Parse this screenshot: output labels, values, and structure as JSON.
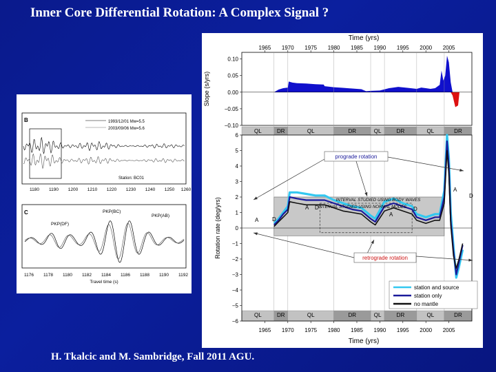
{
  "slide": {
    "title": "Inner Core Differential Rotation: A Complex Signal ?",
    "credit": "H. Tkalcic and M. Sambridge, Fall 2011 AGU."
  },
  "colors": {
    "background": "#0a1a8c",
    "slope_positive": "#1010cc",
    "slope_negative": "#dd1111",
    "station_and_source": "#33c8f0",
    "station_only": "#1a1a9a",
    "no_mantle": "#111111",
    "band": "#c8c8c8"
  },
  "left_panel": {
    "b": {
      "label": "B",
      "legend": [
        "1993/12/01 Mw=5.5",
        "2003/09/06 Mw=5.6"
      ],
      "station": "Station: BC01",
      "x_ticks": [
        "1180",
        "1190",
        "1200",
        "1210",
        "1220",
        "1230",
        "1240",
        "1250",
        "1260"
      ]
    },
    "c": {
      "label": "C",
      "phases": [
        "PKP(DF)",
        "PKP(BC)",
        "PKP(AB)"
      ],
      "x_ticks": [
        "1176",
        "1178",
        "1180",
        "1182",
        "1184",
        "1186",
        "1188",
        "1190",
        "1192"
      ],
      "xlabel": "Travel time (s)"
    }
  },
  "chart_data": [
    {
      "type": "area",
      "title": "",
      "xlabel": "Time (yrs)",
      "ylabel": "Slope (s/yrs)",
      "xlim": [
        1960,
        2010
      ],
      "ylim": [
        -0.1,
        0.12
      ],
      "x_ticks": [
        "1965",
        "1970",
        "1975",
        "1980",
        "1985",
        "1990",
        "1995",
        "2000",
        "2005"
      ],
      "y_ticks": [
        "0.10",
        "0.05",
        "0.00",
        "−0.05",
        "−0.10"
      ],
      "series": [
        {
          "name": "slope",
          "x": [
            1967,
            1968,
            1969,
            1970,
            1970.2,
            1971,
            1972,
            1974,
            1976,
            1977.8,
            1978,
            1980,
            1982,
            1984,
            1986,
            1987,
            1988,
            1990,
            1992,
            1994,
            1996,
            1998,
            1999,
            2000,
            2001,
            2002,
            2003,
            2003.4,
            2003.8,
            2004.2,
            2004.6,
            2005,
            2005.4,
            2005.8,
            2006.4,
            2007,
            2007.3
          ],
          "values": [
            0,
            0.008,
            0.012,
            0.014,
            0.032,
            0.029,
            0.027,
            0.026,
            0.024,
            0.023,
            0.018,
            0.015,
            0.013,
            0.011,
            0.009,
            0.003,
            0.004,
            0.005,
            0.012,
            0.016,
            0.013,
            0.01,
            0.014,
            0.012,
            0.01,
            0.012,
            0.022,
            0.065,
            0.035,
            0.05,
            0.11,
            0.09,
            0.03,
            -0.01,
            -0.045,
            -0.04,
            0
          ]
        }
      ]
    },
    {
      "type": "line",
      "title": "",
      "xlabel": "Time (yrs)",
      "ylabel": "Rotation rate (deg/yrs)",
      "xlim": [
        1960,
        2010
      ],
      "ylim": [
        -6,
        6
      ],
      "x_ticks": [
        "1965",
        "1970",
        "1975",
        "1980",
        "1985",
        "1990",
        "1995",
        "2000",
        "2005"
      ],
      "y_ticks": [
        "6",
        "5",
        "4",
        "3",
        "2",
        "1",
        "0",
        "−1",
        "−2",
        "−3",
        "−4",
        "−5",
        "−6"
      ],
      "period_labels": [
        "QL",
        "DR",
        "QL",
        "DR",
        "QL",
        "DR",
        "QL",
        "DR"
      ],
      "period_bounds": [
        1960,
        1967,
        1970,
        1980,
        1988,
        1991,
        1998,
        2004,
        2010
      ],
      "annotations": [
        "prograde rotation",
        "retrograde rotation",
        "INTERVAL STUDIED USING BODY WAVES",
        "INTERVAL STUDIED USING NORMAL MODES",
        "A",
        "D",
        "A",
        "D",
        "A",
        "D",
        "A",
        "D"
      ],
      "legend": [
        "station and source",
        "station only",
        "no mantle"
      ],
      "series": [
        {
          "name": "station and source",
          "x": [
            1967,
            1968,
            1969,
            1970,
            1970.4,
            1972,
            1974,
            1976,
            1978,
            1980,
            1982,
            1984,
            1986,
            1988,
            1989,
            1991,
            1993,
            1995,
            1997,
            1998,
            2000,
            2002,
            2003,
            2004,
            2004.6,
            2005,
            2005.4,
            2006,
            2006.6,
            2007.2,
            2008
          ],
          "values": [
            0.3,
            0.6,
            1.0,
            1.4,
            2.3,
            2.3,
            2.2,
            2.1,
            2.1,
            1.8,
            1.6,
            1.4,
            1.3,
            0.8,
            0.6,
            1.7,
            1.9,
            1.6,
            1.4,
            0.9,
            0.7,
            0.9,
            0.9,
            2.4,
            6.0,
            4.5,
            1.0,
            -1.2,
            -3.2,
            -2.5,
            -1.4
          ]
        },
        {
          "name": "station only",
          "x": [
            1967,
            1968,
            1969,
            1970,
            1970.4,
            1972,
            1974,
            1976,
            1978,
            1980,
            1982,
            1984,
            1986,
            1988,
            1989,
            1991,
            1993,
            1995,
            1997,
            1998,
            2000,
            2002,
            2003,
            2004,
            2004.6,
            2005,
            2005.4,
            2006,
            2006.6,
            2007.2,
            2008
          ],
          "values": [
            0.2,
            0.5,
            0.9,
            1.2,
            2.0,
            1.9,
            1.8,
            1.8,
            1.8,
            1.6,
            1.4,
            1.2,
            1.1,
            0.6,
            0.4,
            1.4,
            1.6,
            1.4,
            1.2,
            0.7,
            0.5,
            0.7,
            0.7,
            2.0,
            5.6,
            4.0,
            0.5,
            -1.5,
            -3.0,
            -2.2,
            -1.1
          ]
        },
        {
          "name": "no mantle",
          "x": [
            1967,
            1968,
            1969,
            1970,
            1970.4,
            1972,
            1974,
            1976,
            1978,
            1980,
            1982,
            1984,
            1986,
            1988,
            1989,
            1991,
            1993,
            1995,
            1997,
            1998,
            2000,
            2002,
            2003,
            2004,
            2004.6,
            2005,
            2005.4,
            2006,
            2006.6,
            2007.2,
            2008
          ],
          "values": [
            0.1,
            0.4,
            0.7,
            1.0,
            1.7,
            1.6,
            1.5,
            1.5,
            1.5,
            1.3,
            1.1,
            1.0,
            0.9,
            0.4,
            0.2,
            1.1,
            1.3,
            1.1,
            0.9,
            0.5,
            0.3,
            0.5,
            0.5,
            1.6,
            5.0,
            3.5,
            0.2,
            -1.8,
            -2.6,
            -2.0,
            -1.0
          ]
        }
      ]
    }
  ]
}
